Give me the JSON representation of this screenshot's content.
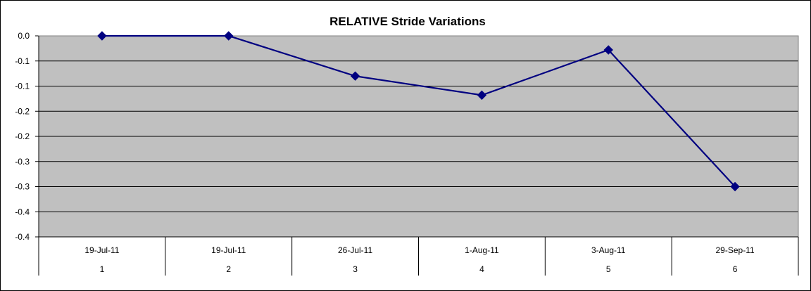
{
  "chart_data": {
    "type": "line",
    "title": "RELATIVE Stride Variations",
    "xlabel": "",
    "ylabel": "",
    "categories": [
      {
        "date": "19-Jul-11",
        "index": "1"
      },
      {
        "date": "19-Jul-11",
        "index": "2"
      },
      {
        "date": "26-Jul-11",
        "index": "3"
      },
      {
        "date": "1-Aug-11",
        "index": "4"
      },
      {
        "date": "3-Aug-11",
        "index": "5"
      },
      {
        "date": "29-Sep-11",
        "index": "6"
      }
    ],
    "series": [
      {
        "values": [
          0.0,
          0.0,
          -0.08,
          -0.118,
          -0.028,
          -0.3
        ],
        "color": "#000080"
      }
    ],
    "ylim": [
      -0.4,
      0.0
    ],
    "yticks": [
      0.0,
      -0.05,
      -0.1,
      -0.15,
      -0.2,
      -0.25,
      -0.3,
      -0.35,
      -0.4
    ],
    "ytick_labels": [
      "0.0",
      "-0.1",
      "-0.1",
      "-0.2",
      "-0.2",
      "-0.3",
      "-0.3",
      "-0.4",
      "-0.4"
    ],
    "grid": true,
    "plot_background": "#c0c0c0",
    "marker": "diamond"
  }
}
